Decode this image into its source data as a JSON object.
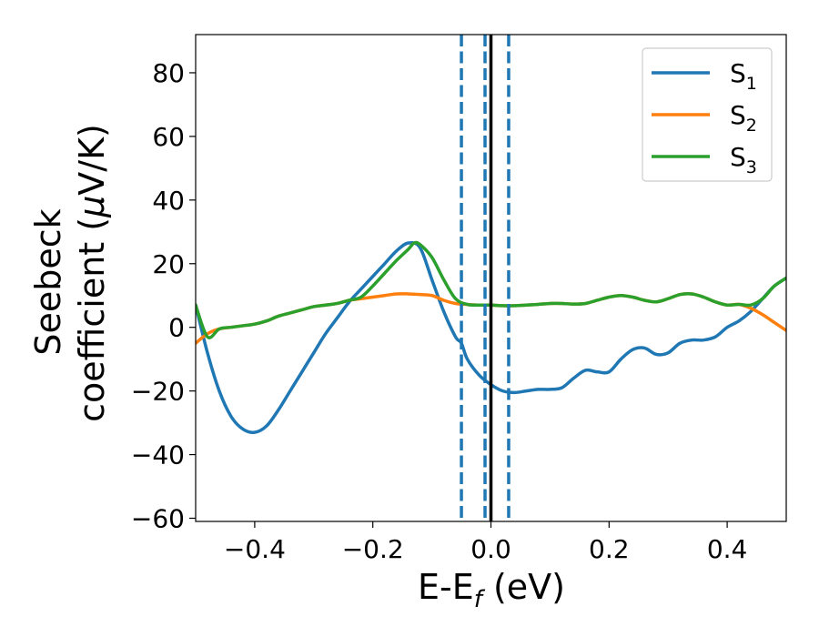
{
  "chart_data": {
    "type": "line",
    "xlabel": {
      "main": "E-E",
      "sub": "f",
      "unit": " (eV)"
    },
    "ylabel": {
      "line1": "Seebeck",
      "line2_prefix": "coefficient  (",
      "mu": "μ",
      "line2_suffix": "V/K)"
    },
    "xlim": [
      -0.5,
      0.5
    ],
    "ylim": [
      -61,
      92
    ],
    "xticks": [
      -0.4,
      -0.2,
      0.0,
      0.2,
      0.4
    ],
    "xtick_labels": [
      "−0.4",
      "−0.2",
      "0.0",
      "0.2",
      "0.4"
    ],
    "yticks": [
      -60,
      -40,
      -20,
      0,
      20,
      40,
      60,
      80
    ],
    "ytick_labels": [
      "−60",
      "−40",
      "−20",
      "0",
      "20",
      "40",
      "60",
      "80"
    ],
    "grid": false,
    "legend_position": "top-right",
    "vlines": [
      {
        "x": -0.05,
        "style": "dashed",
        "color": "#1f77b4"
      },
      {
        "x": -0.01,
        "style": "dashed",
        "color": "#1f77b4"
      },
      {
        "x": 0.0,
        "style": "solid",
        "color": "#000000"
      },
      {
        "x": 0.03,
        "style": "dashed",
        "color": "#1f77b4"
      }
    ],
    "series": [
      {
        "name": "S",
        "sub": "1",
        "color": "#1f77b4",
        "points": [
          [
            -0.5,
            7
          ],
          [
            -0.48,
            -8
          ],
          [
            -0.46,
            -20
          ],
          [
            -0.44,
            -28
          ],
          [
            -0.42,
            -32
          ],
          [
            -0.4,
            -33
          ],
          [
            -0.38,
            -31
          ],
          [
            -0.36,
            -26
          ],
          [
            -0.34,
            -20
          ],
          [
            -0.32,
            -14
          ],
          [
            -0.3,
            -8
          ],
          [
            -0.28,
            -2
          ],
          [
            -0.26,
            3
          ],
          [
            -0.24,
            8
          ],
          [
            -0.22,
            12
          ],
          [
            -0.2,
            16
          ],
          [
            -0.18,
            20
          ],
          [
            -0.16,
            24
          ],
          [
            -0.14,
            26.5
          ],
          [
            -0.12,
            25
          ],
          [
            -0.1,
            15
          ],
          [
            -0.08,
            5
          ],
          [
            -0.06,
            -3
          ],
          [
            -0.05,
            -5
          ],
          [
            -0.04,
            -10
          ],
          [
            -0.02,
            -15
          ],
          [
            0.0,
            -18
          ],
          [
            0.02,
            -20
          ],
          [
            0.04,
            -20.5
          ],
          [
            0.06,
            -20
          ],
          [
            0.08,
            -19.5
          ],
          [
            0.1,
            -19.5
          ],
          [
            0.12,
            -19
          ],
          [
            0.14,
            -16
          ],
          [
            0.16,
            -13.5
          ],
          [
            0.18,
            -14
          ],
          [
            0.2,
            -14
          ],
          [
            0.22,
            -10
          ],
          [
            0.24,
            -7
          ],
          [
            0.26,
            -6.5
          ],
          [
            0.28,
            -8.5
          ],
          [
            0.3,
            -8
          ],
          [
            0.32,
            -5
          ],
          [
            0.34,
            -4
          ],
          [
            0.36,
            -4
          ],
          [
            0.38,
            -3
          ],
          [
            0.4,
            0
          ],
          [
            0.42,
            2
          ],
          [
            0.44,
            5
          ],
          [
            0.46,
            9
          ],
          [
            0.48,
            13
          ],
          [
            0.5,
            15.5
          ]
        ]
      },
      {
        "name": "S",
        "sub": "2",
        "color": "#ff7f0e",
        "points": [
          [
            -0.5,
            -5
          ],
          [
            -0.48,
            -2
          ],
          [
            -0.46,
            -0.5
          ],
          [
            -0.44,
            0
          ],
          [
            -0.42,
            0.5
          ],
          [
            -0.4,
            1
          ],
          [
            -0.38,
            2
          ],
          [
            -0.36,
            3.5
          ],
          [
            -0.34,
            4.5
          ],
          [
            -0.32,
            5.5
          ],
          [
            -0.3,
            6.5
          ],
          [
            -0.28,
            7
          ],
          [
            -0.26,
            7.5
          ],
          [
            -0.24,
            8.5
          ],
          [
            -0.22,
            9
          ],
          [
            -0.2,
            9.5
          ],
          [
            -0.18,
            10
          ],
          [
            -0.16,
            10.5
          ],
          [
            -0.14,
            10.5
          ],
          [
            -0.12,
            10.3
          ],
          [
            -0.1,
            10
          ],
          [
            -0.08,
            8.5
          ],
          [
            -0.06,
            7.5
          ],
          [
            -0.04,
            7.2
          ],
          [
            -0.02,
            7
          ],
          [
            0.0,
            7
          ],
          [
            0.02,
            6.8
          ],
          [
            0.04,
            6.8
          ],
          [
            0.06,
            7
          ],
          [
            0.08,
            7.2
          ],
          [
            0.1,
            7.5
          ],
          [
            0.12,
            7.5
          ],
          [
            0.14,
            7.3
          ],
          [
            0.16,
            7.5
          ],
          [
            0.18,
            8.5
          ],
          [
            0.2,
            9.5
          ],
          [
            0.22,
            10
          ],
          [
            0.24,
            9.5
          ],
          [
            0.26,
            8.5
          ],
          [
            0.28,
            8
          ],
          [
            0.3,
            9
          ],
          [
            0.32,
            10.3
          ],
          [
            0.34,
            10.5
          ],
          [
            0.36,
            9.5
          ],
          [
            0.38,
            8
          ],
          [
            0.4,
            7
          ],
          [
            0.42,
            7.2
          ],
          [
            0.44,
            6
          ],
          [
            0.46,
            4
          ],
          [
            0.48,
            1.5
          ],
          [
            0.5,
            -1
          ]
        ]
      },
      {
        "name": "S",
        "sub": "3",
        "color": "#2ca02c",
        "points": [
          [
            -0.5,
            7
          ],
          [
            -0.48,
            -3
          ],
          [
            -0.46,
            -0.5
          ],
          [
            -0.44,
            0
          ],
          [
            -0.42,
            0.5
          ],
          [
            -0.4,
            1
          ],
          [
            -0.38,
            2
          ],
          [
            -0.36,
            3.5
          ],
          [
            -0.34,
            4.5
          ],
          [
            -0.32,
            5.5
          ],
          [
            -0.3,
            6.5
          ],
          [
            -0.28,
            7
          ],
          [
            -0.26,
            7.5
          ],
          [
            -0.24,
            8.5
          ],
          [
            -0.22,
            9.5
          ],
          [
            -0.2,
            13
          ],
          [
            -0.18,
            17
          ],
          [
            -0.16,
            21
          ],
          [
            -0.14,
            24.5
          ],
          [
            -0.13,
            26.5
          ],
          [
            -0.12,
            26
          ],
          [
            -0.1,
            22
          ],
          [
            -0.08,
            15
          ],
          [
            -0.06,
            9
          ],
          [
            -0.04,
            7.2
          ],
          [
            -0.02,
            7
          ],
          [
            0.0,
            7
          ],
          [
            0.02,
            6.8
          ],
          [
            0.04,
            6.8
          ],
          [
            0.06,
            7
          ],
          [
            0.08,
            7.2
          ],
          [
            0.1,
            7.5
          ],
          [
            0.12,
            7.5
          ],
          [
            0.14,
            7.3
          ],
          [
            0.16,
            7.5
          ],
          [
            0.18,
            8.5
          ],
          [
            0.2,
            9.5
          ],
          [
            0.22,
            10
          ],
          [
            0.24,
            9.5
          ],
          [
            0.26,
            8.5
          ],
          [
            0.28,
            8
          ],
          [
            0.3,
            9
          ],
          [
            0.32,
            10.3
          ],
          [
            0.34,
            10.5
          ],
          [
            0.36,
            9.5
          ],
          [
            0.38,
            8
          ],
          [
            0.4,
            7
          ],
          [
            0.42,
            7.2
          ],
          [
            0.44,
            7
          ],
          [
            0.46,
            9
          ],
          [
            0.48,
            13
          ],
          [
            0.5,
            15.5
          ]
        ]
      }
    ]
  }
}
